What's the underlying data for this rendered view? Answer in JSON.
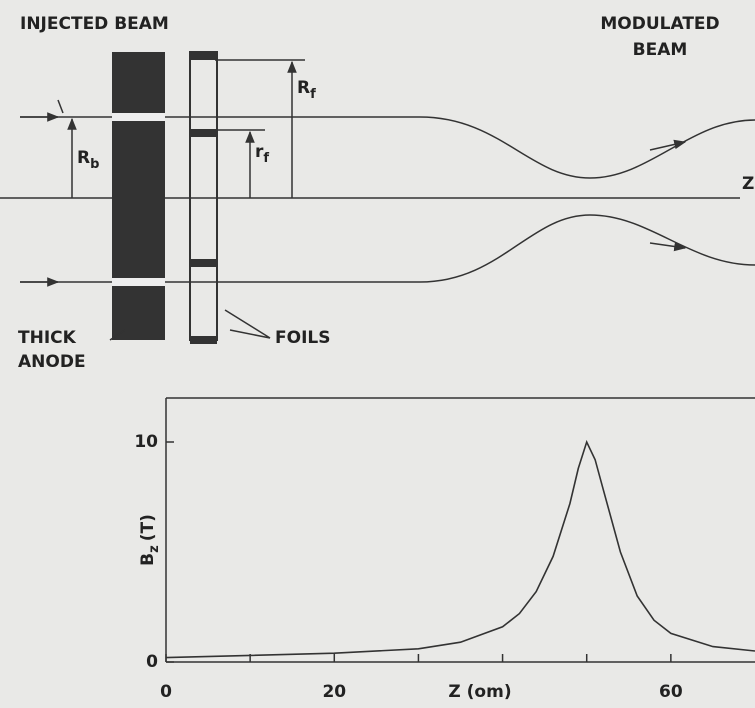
{
  "diagram": {
    "injected_beam": "INJECTED BEAM",
    "modulated_beam": [
      "MODULATED",
      "BEAM"
    ],
    "anode": [
      "THICK",
      "ANODE"
    ],
    "foils": "FOILS",
    "z_axis": "Z",
    "beam_radius": {
      "main": "R",
      "sub": "b"
    },
    "foil_outer_radius": {
      "main": "R",
      "sub": "f"
    },
    "foil_inner_radius": {
      "main": "r",
      "sub": "f"
    }
  },
  "chart_data": {
    "type": "line",
    "x_label": "Z (om)",
    "y_label": {
      "main": "B",
      "sub": "z",
      "unit": "(T)"
    },
    "x": [
      0,
      10,
      20,
      30,
      35,
      40,
      42,
      44,
      46,
      48,
      49,
      50,
      51,
      52,
      54,
      56,
      58,
      60,
      65,
      70
    ],
    "values": [
      0.2,
      0.3,
      0.4,
      0.6,
      0.9,
      1.6,
      2.2,
      3.2,
      4.8,
      7.2,
      8.8,
      10,
      9.2,
      7.8,
      5.0,
      3.0,
      1.9,
      1.3,
      0.7,
      0.5
    ],
    "color": "#333333",
    "xlim": [
      0,
      70
    ],
    "ylim": [
      0,
      12
    ],
    "xticks": [
      0,
      20,
      60
    ],
    "minor_xticks": [
      10,
      30,
      40,
      50
    ],
    "yticks": [
      0,
      10
    ]
  }
}
